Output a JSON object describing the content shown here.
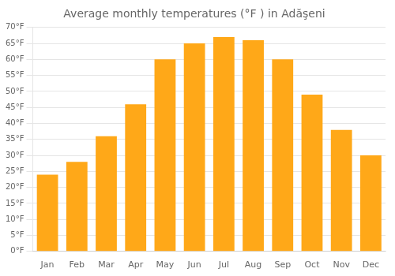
{
  "chart_data": {
    "type": "bar",
    "title": "Average monthly temperatures (°F ) in Adăşeni",
    "categories": [
      "Jan",
      "Feb",
      "Mar",
      "Apr",
      "May",
      "Jun",
      "Jul",
      "Aug",
      "Sep",
      "Oct",
      "Nov",
      "Dec"
    ],
    "values": [
      24,
      28,
      36,
      46,
      60,
      65,
      67,
      66,
      60,
      49,
      38,
      30
    ],
    "color": "#FFA818",
    "ylim": [
      0,
      70
    ],
    "yticks": [
      {
        "value": 0,
        "label": "0°F"
      },
      {
        "value": 5,
        "label": "5°F"
      },
      {
        "value": 10,
        "label": "10°F"
      },
      {
        "value": 15,
        "label": "15°F"
      },
      {
        "value": 20,
        "label": "20°F"
      },
      {
        "value": 25,
        "label": "25°F"
      },
      {
        "value": 30,
        "label": "30°F"
      },
      {
        "value": 35,
        "label": "35°F"
      },
      {
        "value": 40,
        "label": "40°F"
      },
      {
        "value": 45,
        "label": "45°F"
      },
      {
        "value": 50,
        "label": "50°F"
      },
      {
        "value": 55,
        "label": "55°F"
      },
      {
        "value": 60,
        "label": "60°F"
      },
      {
        "value": 65,
        "label": "65°F"
      },
      {
        "value": 70,
        "label": "70°F"
      }
    ],
    "grid": true
  }
}
